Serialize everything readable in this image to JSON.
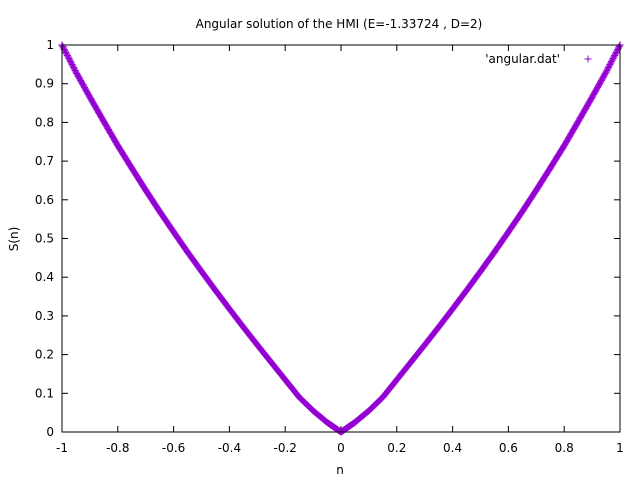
{
  "chart_data": {
    "type": "scatter",
    "title": "Angular solution of the HMI (E=-1.33724 , D=2)",
    "xlabel": "n",
    "ylabel": "S(n)",
    "xlim": [
      -1,
      1
    ],
    "ylim": [
      0,
      1
    ],
    "xticks": [
      "-1",
      "-0.8",
      "-0.6",
      "-0.4",
      "-0.2",
      "0",
      "0.2",
      "0.4",
      "0.6",
      "0.8",
      "1"
    ],
    "yticks": [
      "0",
      "0.1",
      "0.2",
      "0.3",
      "0.4",
      "0.5",
      "0.6",
      "0.7",
      "0.8",
      "0.9",
      "1"
    ],
    "grid": false,
    "legend_position": "top-right",
    "marker": "plus",
    "series": [
      {
        "name": "'angular.dat'",
        "color": "#9400d3",
        "x": [
          -1.0,
          -0.95,
          -0.9,
          -0.85,
          -0.8,
          -0.75,
          -0.7,
          -0.65,
          -0.6,
          -0.55,
          -0.5,
          -0.45,
          -0.4,
          -0.35,
          -0.3,
          -0.25,
          -0.2,
          -0.15,
          -0.1,
          -0.05,
          0.0,
          0.05,
          0.1,
          0.15,
          0.2,
          0.25,
          0.3,
          0.35,
          0.4,
          0.45,
          0.5,
          0.55,
          0.6,
          0.65,
          0.7,
          0.75,
          0.8,
          0.85,
          0.9,
          0.95,
          1.0
        ],
        "y": [
          1.0,
          0.93,
          0.865,
          0.802,
          0.74,
          0.682,
          0.625,
          0.57,
          0.517,
          0.465,
          0.415,
          0.366,
          0.318,
          0.271,
          0.225,
          0.18,
          0.135,
          0.09,
          0.055,
          0.025,
          0.0,
          0.025,
          0.055,
          0.09,
          0.135,
          0.18,
          0.225,
          0.271,
          0.318,
          0.366,
          0.415,
          0.465,
          0.517,
          0.57,
          0.625,
          0.682,
          0.74,
          0.802,
          0.865,
          0.93,
          1.0
        ]
      }
    ]
  }
}
